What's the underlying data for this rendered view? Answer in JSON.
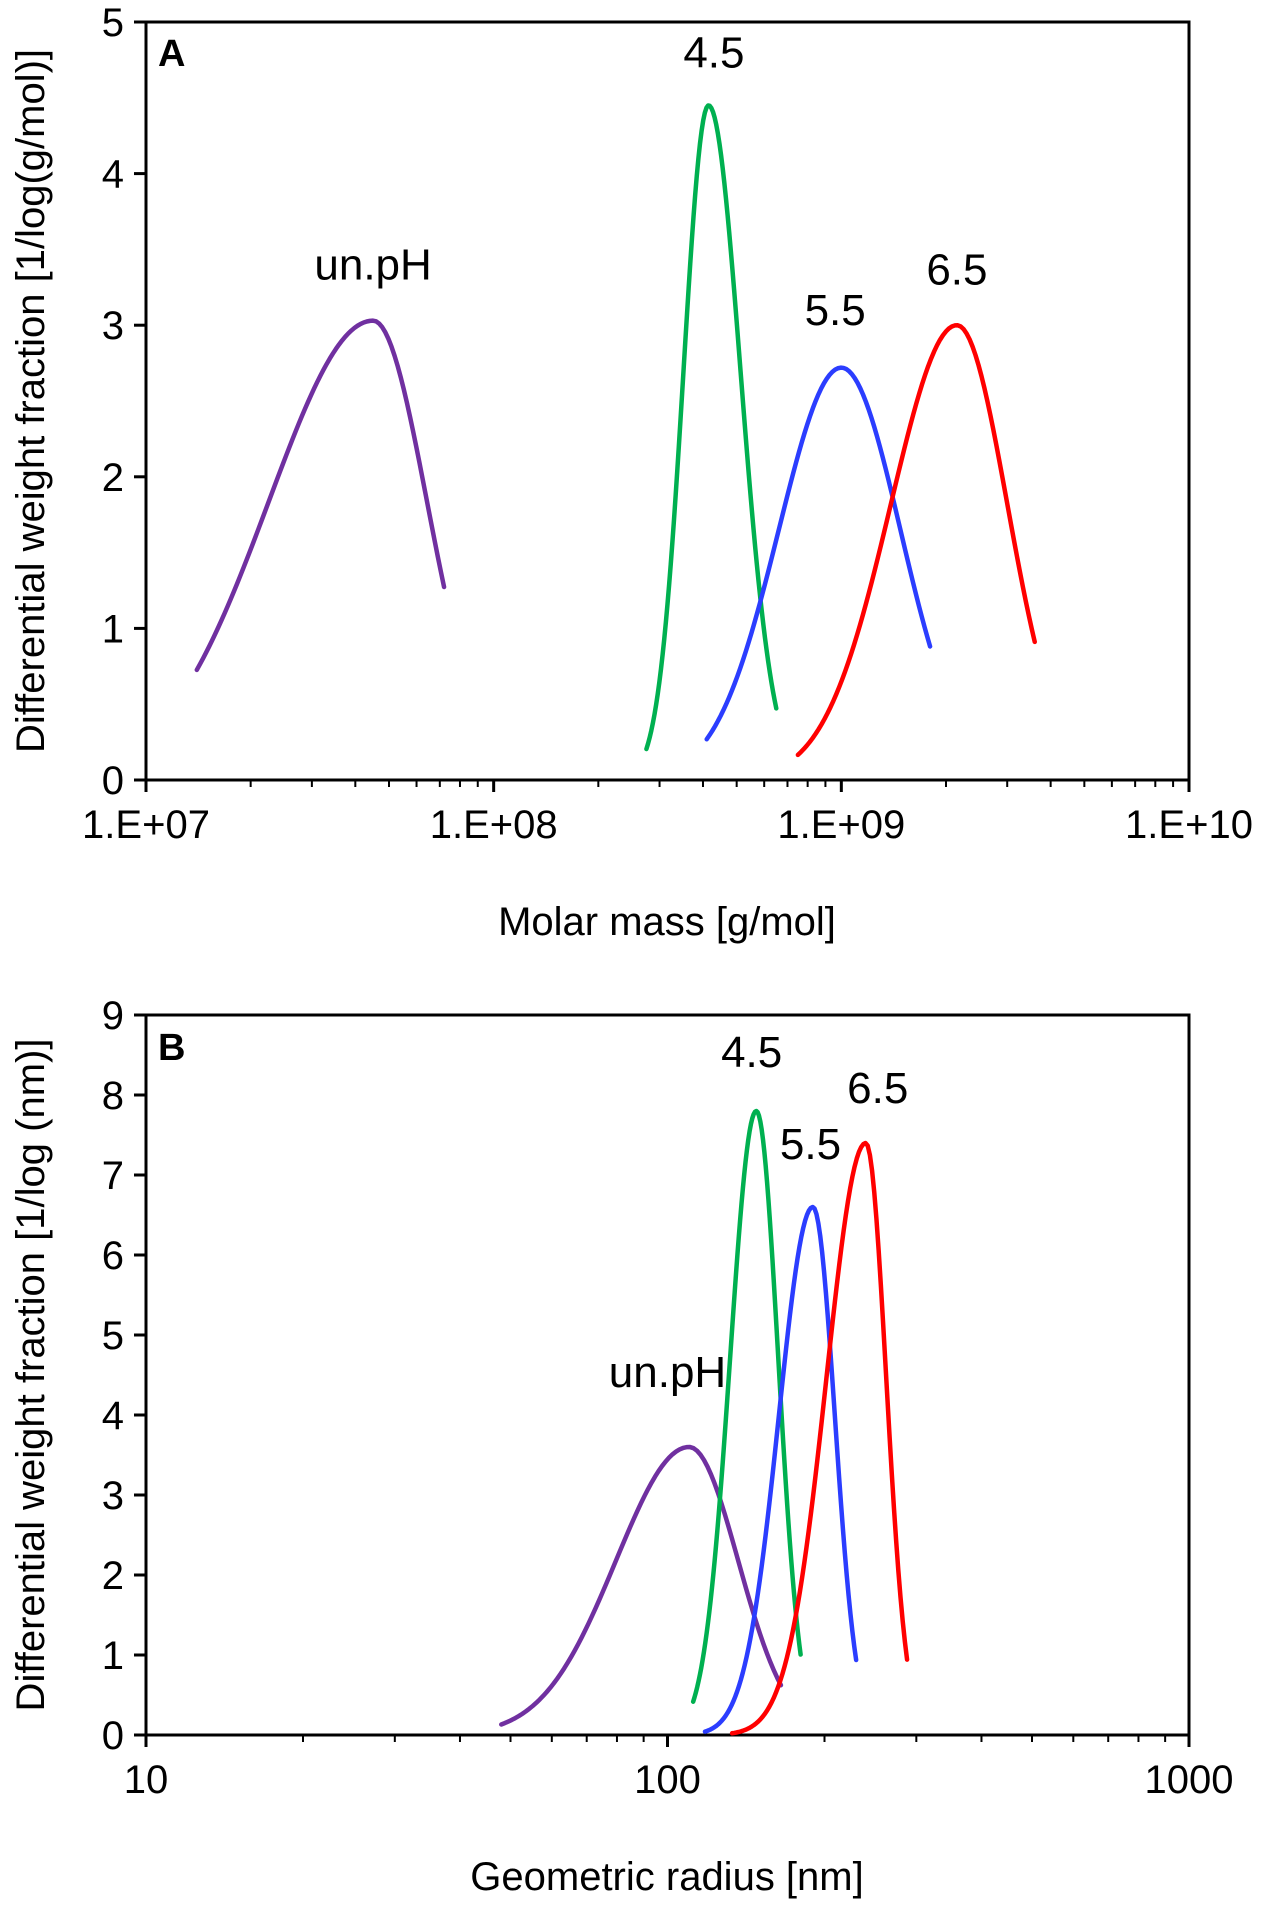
{
  "chart_data": [
    {
      "type": "line",
      "panel": "A",
      "xlabel": "Molar mass [g/mol]",
      "ylabel": "Differential weight fraction [1/log(g/mol)]",
      "xscale": "log",
      "xlim": [
        10000000,
        10000000000
      ],
      "ylim": [
        0,
        5
      ],
      "xticks": [
        {
          "value": 10000000,
          "label": "1.E+07"
        },
        {
          "value": 100000000,
          "label": "1.E+08"
        },
        {
          "value": 1000000000,
          "label": "1.E+09"
        },
        {
          "value": 10000000000,
          "label": "1.E+10"
        }
      ],
      "yticks": [
        {
          "value": 0,
          "label": "0"
        },
        {
          "value": 1,
          "label": "1"
        },
        {
          "value": 2,
          "label": "2"
        },
        {
          "value": 3,
          "label": "3"
        },
        {
          "value": 4,
          "label": "4"
        },
        {
          "value": 5,
          "label": "5"
        }
      ],
      "series": [
        {
          "name": "un.pH",
          "color": "#7030A0",
          "peak_x": 45000000,
          "peak_y": 3.03,
          "x_start": 14000000,
          "x_end": 72000000,
          "sigma_left": 0.3,
          "sigma_right": 0.155,
          "label_x": 45000000,
          "label_y": 3.3
        },
        {
          "name": "4.5",
          "color": "#00B050",
          "peak_x": 415000000,
          "peak_y": 4.45,
          "x_start": 275000000,
          "x_end": 650000000,
          "sigma_left": 0.072,
          "sigma_right": 0.092,
          "label_x": 430000000,
          "label_y": 4.7
        },
        {
          "name": "5.5",
          "color": "#2B3DFF",
          "peak_x": 1000000000,
          "peak_y": 2.72,
          "x_start": 410000000,
          "x_end": 1800000000,
          "sigma_left": 0.18,
          "sigma_right": 0.17,
          "label_x": 960000000,
          "label_y": 3.0
        },
        {
          "name": "6.5",
          "color": "#FF0000",
          "peak_x": 2150000000,
          "peak_y": 3.0,
          "x_start": 750000000,
          "x_end": 3600000000,
          "sigma_left": 0.19,
          "sigma_right": 0.145,
          "label_x": 2150000000,
          "label_y": 3.27
        }
      ]
    },
    {
      "type": "line",
      "panel": "B",
      "xlabel": "Geometric radius [nm]",
      "ylabel": "Differential weight fraction [1/log (nm)]",
      "xscale": "log",
      "xlim": [
        10,
        1000
      ],
      "ylim": [
        0,
        9
      ],
      "xticks": [
        {
          "value": 10,
          "label": "10"
        },
        {
          "value": 100,
          "label": "100"
        },
        {
          "value": 1000,
          "label": "1000"
        }
      ],
      "yticks": [
        {
          "value": 0,
          "label": "0"
        },
        {
          "value": 1,
          "label": "1"
        },
        {
          "value": 2,
          "label": "2"
        },
        {
          "value": 3,
          "label": "3"
        },
        {
          "value": 4,
          "label": "4"
        },
        {
          "value": 5,
          "label": "5"
        },
        {
          "value": 6,
          "label": "6"
        },
        {
          "value": 7,
          "label": "7"
        },
        {
          "value": 8,
          "label": "8"
        },
        {
          "value": 9,
          "label": "9"
        }
      ],
      "series": [
        {
          "name": "un.pH",
          "color": "#7030A0",
          "peak_x": 110,
          "peak_y": 3.6,
          "x_start": 48,
          "x_end": 165,
          "sigma_left": 0.14,
          "sigma_right": 0.094,
          "label_x": 100,
          "label_y": 4.35
        },
        {
          "name": "4.5",
          "color": "#00B050",
          "peak_x": 148,
          "peak_y": 7.8,
          "x_start": 112,
          "x_end": 180,
          "sigma_left": 0.05,
          "sigma_right": 0.042,
          "label_x": 145,
          "label_y": 8.35
        },
        {
          "name": "5.5",
          "color": "#2B3DFF",
          "peak_x": 190,
          "peak_y": 6.6,
          "x_start": 118,
          "x_end": 230,
          "sigma_left": 0.065,
          "sigma_right": 0.042,
          "label_x": 188,
          "label_y": 7.2
        },
        {
          "name": "6.5",
          "color": "#FF0000",
          "peak_x": 240,
          "peak_y": 7.4,
          "x_start": 133,
          "x_end": 288,
          "sigma_left": 0.075,
          "sigma_right": 0.039,
          "label_x": 253,
          "label_y": 7.9
        }
      ]
    }
  ]
}
